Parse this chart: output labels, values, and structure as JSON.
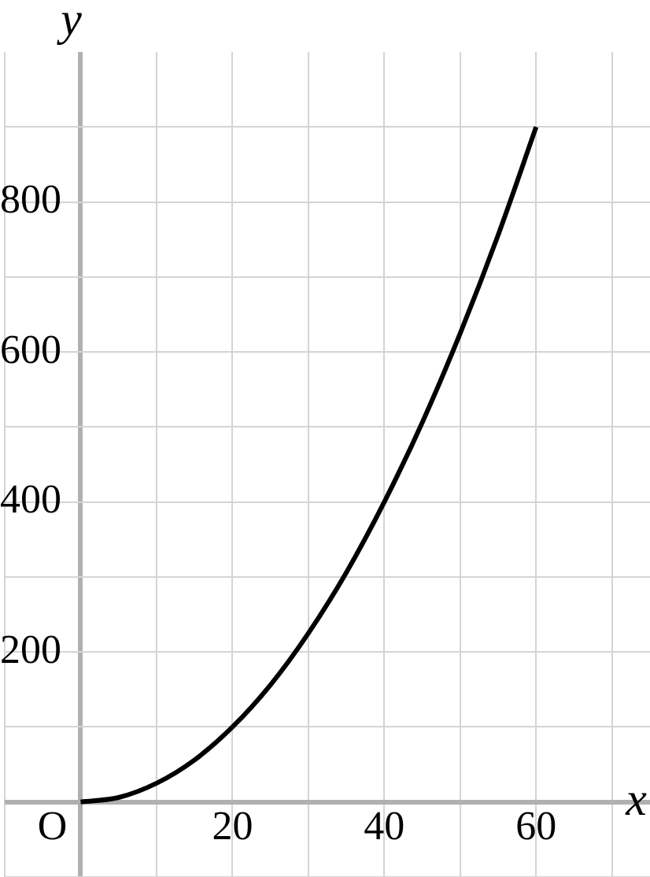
{
  "chart_data": {
    "type": "line",
    "xlabel": "x",
    "ylabel": "y",
    "x": [
      0,
      5,
      10,
      15,
      20,
      25,
      30,
      35,
      40,
      45,
      50,
      55,
      60
    ],
    "series": [
      {
        "color": "#000000",
        "values": [
          0,
          6,
          25,
          56,
          100,
          156,
          225,
          306,
          400,
          506,
          625,
          756,
          900
        ]
      }
    ],
    "xlim": [
      -10,
      75
    ],
    "ylim": [
      -100,
      1000
    ],
    "xticks": [
      {
        "value": -10,
        "label": null
      },
      {
        "value": 0,
        "label": "O"
      },
      {
        "value": 10,
        "label": null
      },
      20,
      {
        "value": 30,
        "label": null
      },
      40,
      {
        "value": 50,
        "label": null
      },
      60,
      {
        "value": 70,
        "label": null
      }
    ],
    "yticks": [
      {
        "value": -100,
        "label": null
      },
      {
        "value": 0,
        "label": null
      },
      {
        "value": 100,
        "label": null
      },
      200,
      {
        "value": 300,
        "label": null
      },
      400,
      {
        "value": 500,
        "label": null
      },
      600,
      {
        "value": 700,
        "label": null
      },
      800,
      {
        "value": 900,
        "label": null
      }
    ],
    "grid": true,
    "legend": false,
    "marker": "none",
    "line_style": "solid"
  }
}
